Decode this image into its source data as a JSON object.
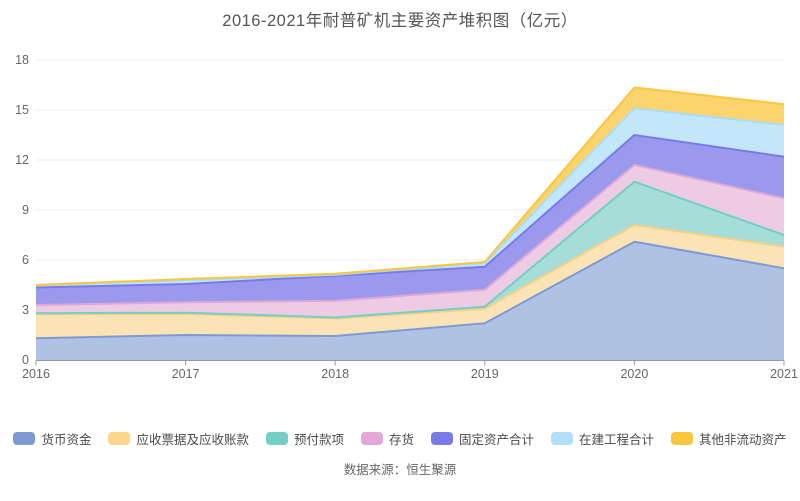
{
  "source": "数据来源：恒生聚源",
  "chart_data": {
    "type": "area",
    "stacked": true,
    "title": "2016-2021年耐普矿机主要资产堆积图（亿元）",
    "xlabel": "",
    "ylabel": "",
    "x": [
      2016,
      2017,
      2018,
      2019,
      2020,
      2021
    ],
    "ylim": [
      0,
      18
    ],
    "yticks": [
      0,
      3,
      6,
      9,
      12,
      15,
      18
    ],
    "grid": true,
    "legend_position": "bottom",
    "axis_color": "#999999",
    "grid_color": "#ebedf4",
    "tick_label_color": "#666666",
    "series": [
      {
        "name": "货币资金",
        "line": "#7C9BD4",
        "fill": "#AFC2E4",
        "swatch": "#7C9BD4",
        "values": [
          1.3,
          1.5,
          1.44,
          2.2,
          7.1,
          5.5
        ]
      },
      {
        "name": "应收票据及应收账款",
        "line": "#F9CF85",
        "fill": "#FBE3B5",
        "swatch": "#FBD78E",
        "values": [
          1.45,
          1.26,
          1.05,
          0.88,
          1.0,
          1.3
        ]
      },
      {
        "name": "预付款项",
        "line": "#72CFC5",
        "fill": "#A5DED8",
        "swatch": "#72CFC5",
        "values": [
          0.05,
          0.08,
          0.06,
          0.12,
          2.6,
          0.7
        ]
      },
      {
        "name": "存货",
        "line": "#DDA7D6",
        "fill": "#EECBE5",
        "swatch": "#E2A8DA",
        "values": [
          0.5,
          0.62,
          1.0,
          1.02,
          1.0,
          2.2
        ]
      },
      {
        "name": "固定资产合计",
        "line": "#7B79E8",
        "fill": "#9B99EE",
        "swatch": "#7B79E8",
        "values": [
          1.05,
          1.1,
          1.5,
          1.38,
          1.8,
          2.5
        ]
      },
      {
        "name": "在建工程合计",
        "line": "#A8DDF8",
        "fill": "#C2E7FA",
        "swatch": "#AFE0F8",
        "values": [
          0.12,
          0.22,
          0.07,
          0.2,
          1.6,
          1.9
        ]
      },
      {
        "name": "其他非流动资产",
        "line": "#FBC53C",
        "fill": "#FCD46E",
        "swatch": "#FBC53C",
        "values": [
          0.03,
          0.08,
          0.05,
          0.08,
          1.25,
          1.25
        ]
      }
    ]
  }
}
